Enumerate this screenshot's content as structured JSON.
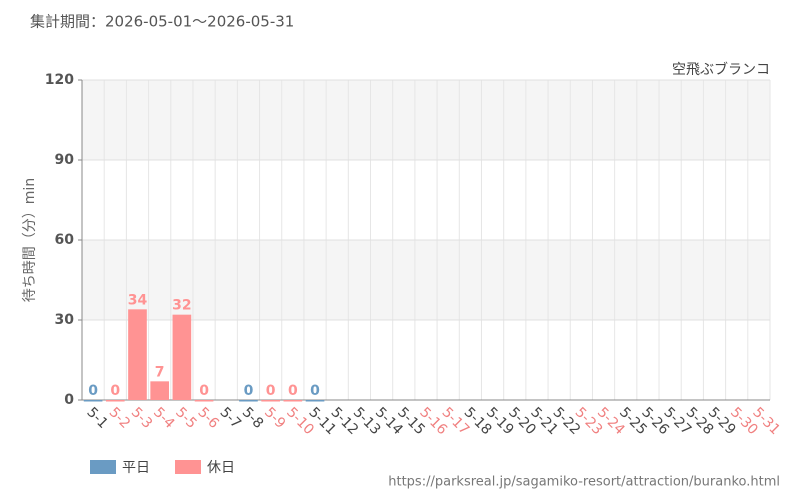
{
  "chart_data": {
    "type": "bar",
    "title": "集計期間：2026-05-01～2026-05-31",
    "subtitle": "空飛ぶブランコ",
    "y_label": "待ち時間（分）min",
    "source": "https://parksreal.jp/sagamiko-resort/attraction/buranko.html",
    "categories": [
      "5-1",
      "5-2",
      "5-3",
      "5-4",
      "5-5",
      "5-6",
      "5-7",
      "5-8",
      "5-9",
      "5-10",
      "5-11",
      "5-12",
      "5-13",
      "5-14",
      "5-15",
      "5-16",
      "5-17",
      "5-18",
      "5-19",
      "5-20",
      "5-21",
      "5-22",
      "5-23",
      "5-24",
      "5-25",
      "5-26",
      "5-27",
      "5-28",
      "5-29",
      "5-30",
      "5-31"
    ],
    "category_colors": [
      "#444",
      "#f08080",
      "#f08080",
      "#f08080",
      "#f08080",
      "#f08080",
      "#444",
      "#444",
      "#f08080",
      "#f08080",
      "#444",
      "#444",
      "#444",
      "#444",
      "#444",
      "#f08080",
      "#f08080",
      "#444",
      "#444",
      "#444",
      "#444",
      "#444",
      "#f08080",
      "#f08080",
      "#444",
      "#444",
      "#444",
      "#444",
      "#444",
      "#f08080",
      "#f08080"
    ],
    "series": [
      {
        "name": "平日",
        "color": "#6a9bc3",
        "values": [
          0,
          null,
          null,
          null,
          null,
          null,
          null,
          0,
          null,
          null,
          0,
          null,
          null,
          null,
          null,
          null,
          null,
          null,
          null,
          null,
          null,
          null,
          null,
          null,
          null,
          null,
          null,
          null,
          null,
          null,
          null
        ]
      },
      {
        "name": "休日",
        "color": "#ff9393",
        "values": [
          null,
          0,
          34,
          7,
          32,
          0,
          null,
          null,
          0,
          0,
          null,
          null,
          null,
          null,
          null,
          null,
          null,
          null,
          null,
          null,
          null,
          null,
          null,
          null,
          null,
          null,
          null,
          null,
          null,
          null,
          null
        ]
      }
    ],
    "ylim": [
      0,
      120
    ],
    "yticks": [
      0,
      30,
      60,
      90,
      120
    ],
    "grid": true
  }
}
